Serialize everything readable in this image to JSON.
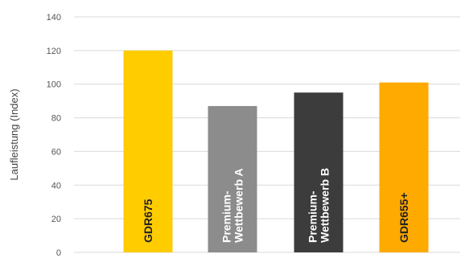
{
  "chart_data": {
    "type": "bar",
    "ylabel": "Laufleistung (Index)",
    "ylim": [
      0,
      140
    ],
    "yticks": [
      0,
      20,
      40,
      60,
      80,
      100,
      120,
      140
    ],
    "grid": true,
    "categories": [
      {
        "label_lines": [
          "GDR675"
        ],
        "value": 120,
        "color": "#FFCC00",
        "label_color": "#222222"
      },
      {
        "label_lines": [
          "Premium-",
          "Wettbewerb A"
        ],
        "value": 87,
        "color": "#8C8C8C",
        "label_color": "#FFFFFF"
      },
      {
        "label_lines": [
          "Premium-",
          "Wettbewerb B"
        ],
        "value": 95,
        "color": "#3C3C3C",
        "label_color": "#FFFFFF"
      },
      {
        "label_lines": [
          "GDR655+"
        ],
        "value": 101,
        "color": "#FFAA00",
        "label_color": "#222222"
      }
    ]
  }
}
